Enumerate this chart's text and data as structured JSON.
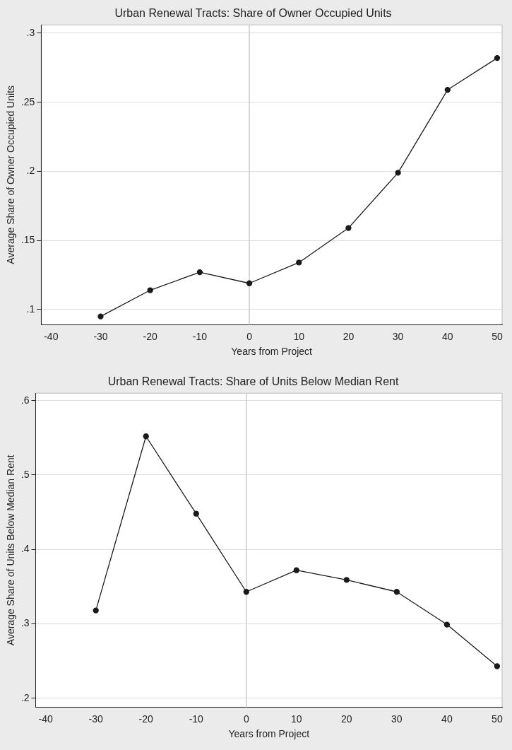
{
  "chart_data": [
    {
      "type": "line",
      "title": "Urban Renewal Tracts: Share of Owner Occupied Units",
      "xlabel": "Years from Project",
      "ylabel": "Average Share of Owner Occupied Units",
      "x": [
        -30,
        -20,
        -10,
        0,
        10,
        20,
        30,
        40,
        50
      ],
      "series": [
        {
          "color": "#1a1a1a",
          "values": [
            0.095,
            0.114,
            0.127,
            0.119,
            0.134,
            0.159,
            0.199,
            0.259,
            0.282
          ]
        }
      ],
      "xlim": [
        -42,
        51
      ],
      "ylim": [
        0.089,
        0.306
      ],
      "xticks": [
        -40,
        -30,
        -20,
        -10,
        0,
        10,
        20,
        30,
        40,
        50
      ],
      "yticks": [
        {
          "value": 0.1,
          "label": ".1"
        },
        {
          "value": 0.15,
          "label": ".15"
        },
        {
          "value": 0.2,
          "label": ".2"
        },
        {
          "value": 0.25,
          "label": ".25"
        },
        {
          "value": 0.3,
          "label": ".3"
        }
      ],
      "grid": "y",
      "marker": "circle",
      "line_style": "solid",
      "ref_lines": [
        {
          "axis": "x",
          "value": 0,
          "color": "#cccccc"
        }
      ]
    },
    {
      "type": "line",
      "title": "Urban Renewal Tracts: Share of Units Below Median Rent",
      "xlabel": "Years from Project",
      "ylabel": "Average Share of Units Below Median Rent",
      "x": [
        -30,
        -20,
        -10,
        0,
        10,
        20,
        30,
        40,
        50
      ],
      "series": [
        {
          "color": "#1a1a1a",
          "values": [
            0.318,
            0.552,
            0.448,
            0.343,
            0.372,
            0.359,
            0.343,
            0.299,
            0.243
          ]
        }
      ],
      "xlim": [
        -42,
        51
      ],
      "ylim": [
        0.188,
        0.61
      ],
      "xticks": [
        -40,
        -30,
        -20,
        -10,
        0,
        10,
        20,
        30,
        40,
        50
      ],
      "yticks": [
        {
          "value": 0.2,
          "label": ".2"
        },
        {
          "value": 0.3,
          "label": ".3"
        },
        {
          "value": 0.4,
          "label": ".4"
        },
        {
          "value": 0.5,
          "label": ".5"
        },
        {
          "value": 0.6,
          "label": ".6"
        }
      ],
      "grid": "y",
      "marker": "circle",
      "line_style": "solid",
      "ref_lines": [
        {
          "axis": "x",
          "value": 0,
          "color": "#cccccc"
        }
      ]
    }
  ]
}
